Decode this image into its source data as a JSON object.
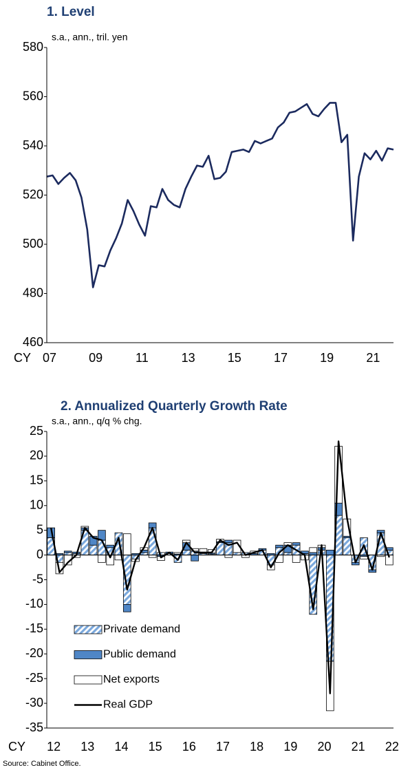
{
  "chart_data": [
    {
      "type": "line",
      "title": "1. Level",
      "subtitle": "s.a., ann., tril. yen",
      "xlabel": "CY",
      "categories": [
        "07",
        null,
        null,
        null,
        null,
        null,
        null,
        null,
        "09",
        null,
        null,
        null,
        null,
        null,
        null,
        null,
        "11",
        null,
        null,
        null,
        null,
        null,
        null,
        null,
        "13",
        null,
        null,
        null,
        null,
        null,
        null,
        null,
        "15",
        null,
        null,
        null,
        null,
        null,
        null,
        null,
        "17",
        null,
        null,
        null,
        null,
        null,
        null,
        null,
        "19",
        null,
        null,
        null,
        null,
        null,
        null,
        null,
        "21",
        null,
        null,
        null,
        null
      ],
      "values": [
        527.5,
        528,
        524.5,
        527,
        529,
        526,
        519,
        506,
        482.5,
        491.5,
        491,
        497.5,
        502.5,
        508.5,
        518,
        513.5,
        508,
        503.5,
        515.5,
        515,
        522.5,
        518,
        516,
        515,
        522.5,
        527.5,
        532,
        531.5,
        536,
        526.5,
        527,
        529.5,
        537.5,
        538,
        538.5,
        537.5,
        542,
        541,
        542,
        543,
        547.5,
        549.5,
        553.5,
        554,
        555.5,
        557,
        553,
        552,
        555,
        557.5,
        557.5,
        541.5,
        544.5,
        501.5,
        527.5,
        537,
        534.5,
        538,
        534,
        539,
        538.5
      ],
      "color": "#1b2a5e",
      "ylim": [
        460,
        580
      ],
      "yticks": [
        460,
        480,
        500,
        520,
        540,
        560,
        580
      ]
    },
    {
      "type": "bar",
      "stacked": true,
      "title": "2. Annualized Quarterly Growth Rate",
      "subtitle": "s.a., ann., q/q % chg.",
      "xlabel": "CY",
      "categories": [
        "12",
        null,
        null,
        null,
        "13",
        null,
        null,
        null,
        "14",
        null,
        null,
        null,
        "15",
        null,
        null,
        null,
        "16",
        null,
        null,
        null,
        "17",
        null,
        null,
        null,
        "18",
        null,
        null,
        null,
        "19",
        null,
        null,
        null,
        "20",
        null,
        null,
        null,
        "21",
        null,
        null,
        null,
        "22"
      ],
      "series": [
        {
          "name": "Private demand",
          "color": "#7aa8dc",
          "hatch": true,
          "values": [
            3.5,
            -1.5,
            0.5,
            0.3,
            5,
            2,
            3,
            1.5,
            4.5,
            -10,
            -0.8,
            0.5,
            5.5,
            0.5,
            0.3,
            -1.5,
            1,
            0.8,
            0.3,
            0.2,
            2.5,
            2.5,
            0.5,
            0.5,
            0,
            1,
            -2,
            1.5,
            0.5,
            2,
            0.3,
            -12,
            1,
            -21.5,
            8,
            3.5,
            -1.5,
            3.5,
            -3,
            4.5,
            1
          ]
        },
        {
          "name": "Public demand",
          "color": "#4f86c6",
          "values": [
            2,
            0.3,
            0.3,
            0.3,
            0.5,
            1.8,
            2,
            0.5,
            0,
            -1.5,
            0.3,
            0.5,
            1,
            -0.3,
            0.3,
            0.2,
            1.5,
            -1.2,
            0.2,
            0.2,
            0.2,
            0.5,
            0,
            0,
            0.3,
            0.3,
            0.3,
            0.5,
            1.5,
            0.5,
            0.5,
            0.5,
            0.5,
            1,
            2.5,
            0.3,
            -0.5,
            -0.3,
            -0.5,
            0.5,
            0.5
          ]
        },
        {
          "name": "Net exports",
          "color": "#ffffff",
          "values": [
            0,
            -2.3,
            -2,
            -0.5,
            0.3,
            0,
            -1.5,
            -2,
            -1,
            4.3,
            -0.5,
            0.5,
            -0.5,
            -0.8,
            0,
            0.3,
            0.5,
            0.5,
            0.8,
            0.7,
            0.5,
            -0.5,
            2.5,
            -0.5,
            0.5,
            0,
            -1,
            -1.5,
            0.5,
            -1.5,
            -1,
            1,
            0.5,
            -10,
            11.5,
            3.5,
            0,
            -0.5,
            0,
            -0.3,
            -2
          ]
        },
        {
          "name": "Real GDP",
          "type": "line",
          "color": "#000000",
          "values": [
            5.5,
            -3.5,
            -1.5,
            0,
            5.5,
            3.5,
            3,
            -0.5,
            3.5,
            -7,
            -1,
            1.5,
            5.5,
            -0.5,
            0.5,
            -1,
            2.5,
            0.5,
            0.5,
            0.5,
            3,
            2,
            2.5,
            0,
            0.5,
            1,
            -2.5,
            0.5,
            2,
            1,
            0,
            -11,
            2,
            -28,
            23,
            7.5,
            -1.5,
            2,
            -3,
            4.5,
            -0.5
          ]
        }
      ],
      "ylim": [
        -35,
        25
      ],
      "yticks": [
        -35,
        -30,
        -25,
        -20,
        -15,
        -10,
        -5,
        0,
        5,
        10,
        15,
        20,
        25
      ]
    }
  ],
  "source": "Source: Cabinet Office."
}
